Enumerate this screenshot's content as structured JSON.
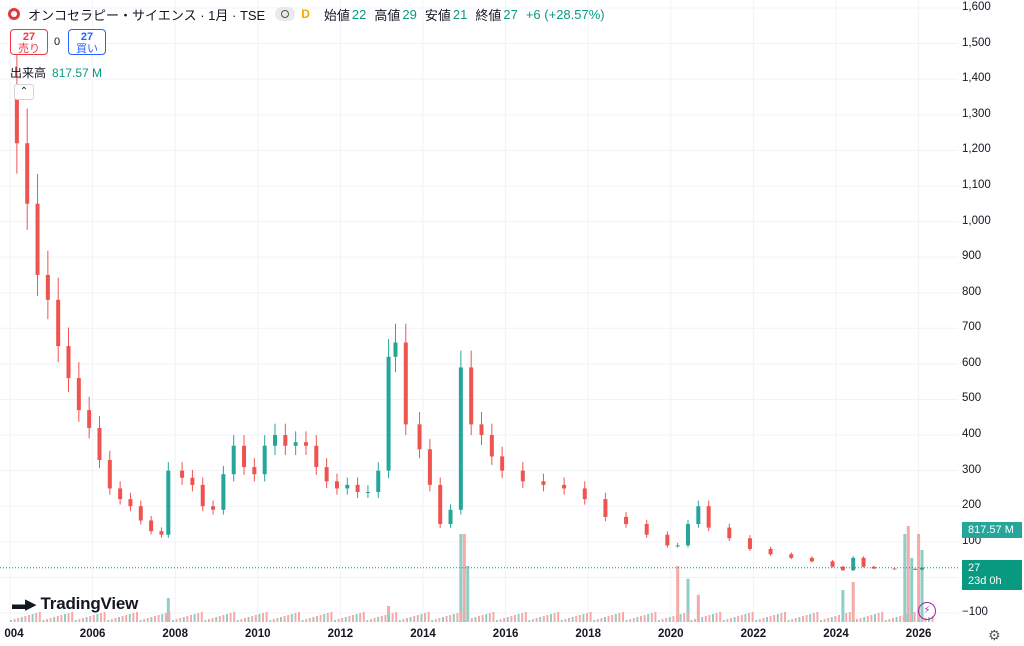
{
  "header": {
    "symbol_title": "オンコセラピー・サイエンス · 1月 · TSE",
    "badge": "D",
    "open_label": "始値",
    "open": "22",
    "high_label": "高値",
    "high": "29",
    "low_label": "安値",
    "low": "21",
    "close_label": "終値",
    "close": "27",
    "change": "+6 (+28.57%)"
  },
  "trade": {
    "sell_price": "27",
    "sell_label": "売り",
    "spread": "0",
    "buy_price": "27",
    "buy_label": "買い"
  },
  "volume_legend": {
    "label": "出来高",
    "value": "817.57 M"
  },
  "price_axis": [
    "1,600",
    "1,500",
    "1,400",
    "1,300",
    "1,200",
    "1,100",
    "1,000",
    "900",
    "800",
    "700",
    "600",
    "500",
    "400",
    "300",
    "200",
    "100",
    "−100"
  ],
  "time_axis": [
    "004",
    "2006",
    "2008",
    "2010",
    "2012",
    "2014",
    "2016",
    "2018",
    "2020",
    "2022",
    "2024",
    "2026"
  ],
  "tags": {
    "volume": "817.57 M",
    "price": "27",
    "countdown": "23d 0h"
  },
  "branding": {
    "name": "TradingView"
  },
  "colors": {
    "up": "#26a69a",
    "down": "#ef5350",
    "vol_up": "#8ccfc7",
    "vol_down": "#f7a9a8",
    "last_line": "#089981"
  },
  "chart_data": {
    "type": "candlestick",
    "timeframe": "1M",
    "exchange": "TSE",
    "ylim": [
      -100,
      1600
    ],
    "last_price": 27,
    "price_series": [
      {
        "date": "2003-12",
        "close": 1380
      },
      {
        "date": "2004-03",
        "close": 1220
      },
      {
        "date": "2004-06",
        "close": 1050
      },
      {
        "date": "2004-09",
        "close": 850
      },
      {
        "date": "2004-12",
        "close": 780
      },
      {
        "date": "2005-03",
        "close": 650
      },
      {
        "date": "2005-06",
        "close": 560
      },
      {
        "date": "2005-09",
        "close": 470
      },
      {
        "date": "2005-12",
        "close": 420
      },
      {
        "date": "2006-03",
        "close": 330
      },
      {
        "date": "2006-06",
        "close": 250
      },
      {
        "date": "2006-09",
        "close": 220
      },
      {
        "date": "2006-12",
        "close": 200
      },
      {
        "date": "2007-03",
        "close": 160
      },
      {
        "date": "2007-06",
        "close": 130
      },
      {
        "date": "2007-09",
        "close": 120
      },
      {
        "date": "2007-11",
        "close": 300
      },
      {
        "date": "2008-03",
        "close": 280
      },
      {
        "date": "2008-06",
        "close": 260
      },
      {
        "date": "2008-09",
        "close": 200
      },
      {
        "date": "2008-12",
        "close": 190
      },
      {
        "date": "2009-03",
        "close": 290
      },
      {
        "date": "2009-06",
        "close": 370
      },
      {
        "date": "2009-09",
        "close": 310
      },
      {
        "date": "2009-12",
        "close": 290
      },
      {
        "date": "2010-03",
        "close": 370
      },
      {
        "date": "2010-06",
        "close": 400
      },
      {
        "date": "2010-09",
        "close": 370
      },
      {
        "date": "2010-12",
        "close": 380
      },
      {
        "date": "2011-03",
        "close": 370
      },
      {
        "date": "2011-06",
        "close": 310
      },
      {
        "date": "2011-09",
        "close": 270
      },
      {
        "date": "2011-12",
        "close": 250
      },
      {
        "date": "2012-03",
        "close": 260
      },
      {
        "date": "2012-06",
        "close": 240
      },
      {
        "date": "2012-09",
        "close": 240
      },
      {
        "date": "2012-12",
        "close": 300
      },
      {
        "date": "2013-03",
        "close": 620
      },
      {
        "date": "2013-05",
        "close": 660
      },
      {
        "date": "2013-08",
        "close": 430
      },
      {
        "date": "2013-12",
        "close": 360
      },
      {
        "date": "2014-03",
        "close": 260
      },
      {
        "date": "2014-06",
        "close": 150
      },
      {
        "date": "2014-09",
        "close": 190
      },
      {
        "date": "2014-12",
        "close": 590
      },
      {
        "date": "2015-03",
        "close": 430
      },
      {
        "date": "2015-06",
        "close": 400
      },
      {
        "date": "2015-09",
        "close": 340
      },
      {
        "date": "2015-12",
        "close": 300
      },
      {
        "date": "2016-06",
        "close": 270
      },
      {
        "date": "2016-12",
        "close": 260
      },
      {
        "date": "2017-06",
        "close": 250
      },
      {
        "date": "2017-12",
        "close": 220
      },
      {
        "date": "2018-06",
        "close": 170
      },
      {
        "date": "2018-12",
        "close": 150
      },
      {
        "date": "2019-06",
        "close": 120
      },
      {
        "date": "2019-12",
        "close": 90
      },
      {
        "date": "2020-03",
        "close": 90
      },
      {
        "date": "2020-06",
        "close": 150
      },
      {
        "date": "2020-09",
        "close": 200
      },
      {
        "date": "2020-12",
        "close": 140
      },
      {
        "date": "2021-06",
        "close": 110
      },
      {
        "date": "2021-12",
        "close": 80
      },
      {
        "date": "2022-06",
        "close": 65
      },
      {
        "date": "2022-12",
        "close": 55
      },
      {
        "date": "2023-06",
        "close": 45
      },
      {
        "date": "2023-12",
        "close": 30
      },
      {
        "date": "2024-03",
        "close": 20
      },
      {
        "date": "2024-06",
        "close": 55
      },
      {
        "date": "2024-09",
        "close": 30
      },
      {
        "date": "2024-12",
        "close": 25
      },
      {
        "date": "2025-06",
        "close": 24
      },
      {
        "date": "2025-12",
        "close": 22
      },
      {
        "date": "2026-02",
        "close": 27
      }
    ],
    "volume_series": [
      {
        "date": "2007-11",
        "ratio": 0.15
      },
      {
        "date": "2013-03",
        "ratio": 0.1
      },
      {
        "date": "2014-12",
        "ratio": 0.55
      },
      {
        "date": "2015-01",
        "ratio": 0.55
      },
      {
        "date": "2015-02",
        "ratio": 0.35
      },
      {
        "date": "2020-03",
        "ratio": 0.35
      },
      {
        "date": "2020-06",
        "ratio": 0.27
      },
      {
        "date": "2020-09",
        "ratio": 0.17
      },
      {
        "date": "2024-03",
        "ratio": 0.2
      },
      {
        "date": "2024-06",
        "ratio": 0.25
      },
      {
        "date": "2025-09",
        "ratio": 0.55
      },
      {
        "date": "2025-10",
        "ratio": 0.6
      },
      {
        "date": "2025-11",
        "ratio": 0.4
      },
      {
        "date": "2026-01",
        "ratio": 0.55
      },
      {
        "date": "2026-02",
        "ratio": 0.45
      }
    ]
  }
}
